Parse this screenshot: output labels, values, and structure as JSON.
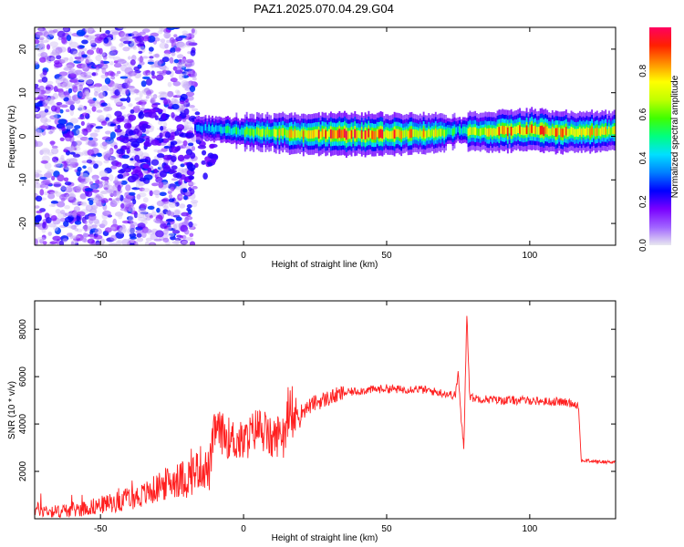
{
  "title": "PAZ1.2025.070.04.29.G04",
  "chart_data": [
    {
      "type": "heatmap",
      "xlabel": "Height of straight line (km)",
      "ylabel": "Frequency (Hz)",
      "xlim": [
        -73,
        130
      ],
      "ylim": [
        -25,
        25
      ],
      "x_ticks": [
        -50,
        0,
        50,
        100
      ],
      "y_ticks": [
        -20,
        -10,
        0,
        10,
        20
      ],
      "colorbar": {
        "label": "Normalized spectral amplitude",
        "range": [
          0,
          1
        ],
        "ticks": [
          0.0,
          0.2,
          0.4,
          0.6,
          0.8
        ],
        "colormap": [
          "#e8e8f0",
          "#a064ff",
          "#7a00ff",
          "#0000ff",
          "#0080ff",
          "#00e0ff",
          "#00ff80",
          "#40ff00",
          "#c0ff00",
          "#ffff00",
          "#ff9000",
          "#ff2000",
          "#ff0060"
        ]
      },
      "noise_region": {
        "x": [
          -73,
          -17
        ],
        "freq_range": [
          -25,
          25
        ],
        "amplitude": [
          0.02,
          0.3
        ]
      },
      "signal_track": {
        "x": [
          -17,
          0,
          10,
          20,
          30,
          40,
          50,
          60,
          70,
          75,
          80,
          90,
          100,
          110,
          120,
          130
        ],
        "freq": [
          2,
          1,
          1,
          0.5,
          0.5,
          0.5,
          0.5,
          0.5,
          0.8,
          1.5,
          1,
          1.2,
          1.5,
          1,
          1,
          1.2
        ],
        "amplitude": [
          0.35,
          0.55,
          0.7,
          0.85,
          0.9,
          0.9,
          0.88,
          0.85,
          0.7,
          0.45,
          0.75,
          0.85,
          0.85,
          0.85,
          0.8,
          0.75
        ]
      }
    },
    {
      "type": "line",
      "xlabel": "Height of straight line (km)",
      "ylabel": "SNR (10 * v/v)",
      "xlim": [
        -73,
        130
      ],
      "ylim": [
        0,
        9200
      ],
      "x_ticks": [
        -50,
        0,
        50,
        100
      ],
      "y_ticks": [
        2000,
        4000,
        6000,
        8000
      ],
      "color": "#ff2020",
      "series": [
        {
          "x": [
            -73,
            -65,
            -55,
            -45,
            -35,
            -25,
            -20,
            -15,
            -12,
            -10,
            -5,
            0,
            5,
            10,
            15,
            20,
            25,
            30,
            35,
            40,
            45,
            50,
            55,
            60,
            65,
            70,
            74,
            75,
            76,
            77,
            78,
            79,
            80,
            85,
            90,
            95,
            100,
            105,
            110,
            116,
            117,
            118,
            120,
            125,
            130
          ],
          "y": [
            400,
            300,
            450,
            700,
            1000,
            1600,
            1700,
            2200,
            2000,
            3800,
            3400,
            3200,
            3900,
            3300,
            3900,
            4500,
            4900,
            5100,
            5300,
            5400,
            5450,
            5500,
            5450,
            5500,
            5400,
            5300,
            5200,
            6200,
            4200,
            3000,
            8800,
            5200,
            5100,
            5050,
            5000,
            5000,
            5000,
            4950,
            4950,
            4850,
            4800,
            2450,
            2450,
            2400,
            2400
          ]
        }
      ]
    }
  ]
}
